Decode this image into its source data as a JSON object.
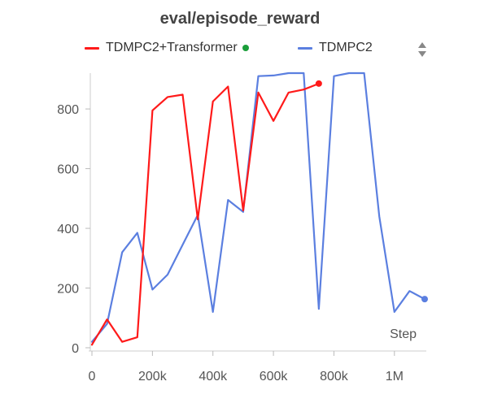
{
  "chart_data": {
    "type": "line",
    "title": "eval/episode_reward",
    "xlabel": "Step",
    "ylabel": "",
    "xlim": [
      0,
      1100000
    ],
    "ylim": [
      0,
      920
    ],
    "x_ticks": [
      0,
      200000,
      400000,
      600000,
      800000,
      1000000
    ],
    "x_tick_labels": [
      "0",
      "200k",
      "400k",
      "600k",
      "800k",
      "1M"
    ],
    "y_ticks": [
      0,
      200,
      400,
      600,
      800
    ],
    "y_tick_labels": [
      "0",
      "200",
      "400",
      "600",
      "800"
    ],
    "grid": false,
    "legend_position": "top",
    "series": [
      {
        "name": "TDMPC2+Transformer",
        "color": "#ff1a1a",
        "marker_color": "#1a9e3a",
        "x": [
          0,
          50000,
          100000,
          150000,
          200000,
          250000,
          300000,
          350000,
          400000,
          450000,
          500000,
          550000,
          600000,
          650000,
          700000,
          750000
        ],
        "y": [
          10,
          95,
          20,
          35,
          795,
          840,
          848,
          430,
          825,
          875,
          460,
          855,
          760,
          855,
          865,
          885
        ]
      },
      {
        "name": "TDMPC2",
        "color": "#5b7fe0",
        "x": [
          0,
          50000,
          100000,
          150000,
          200000,
          250000,
          300000,
          350000,
          400000,
          450000,
          500000,
          550000,
          600000,
          650000,
          700000,
          750000,
          800000,
          850000,
          900000,
          950000,
          1000000,
          1050000,
          1100000
        ],
        "y": [
          20,
          80,
          320,
          385,
          195,
          245,
          345,
          445,
          120,
          495,
          455,
          910,
          912,
          920,
          920,
          130,
          910,
          920,
          920,
          440,
          120,
          190,
          163
        ]
      }
    ]
  }
}
